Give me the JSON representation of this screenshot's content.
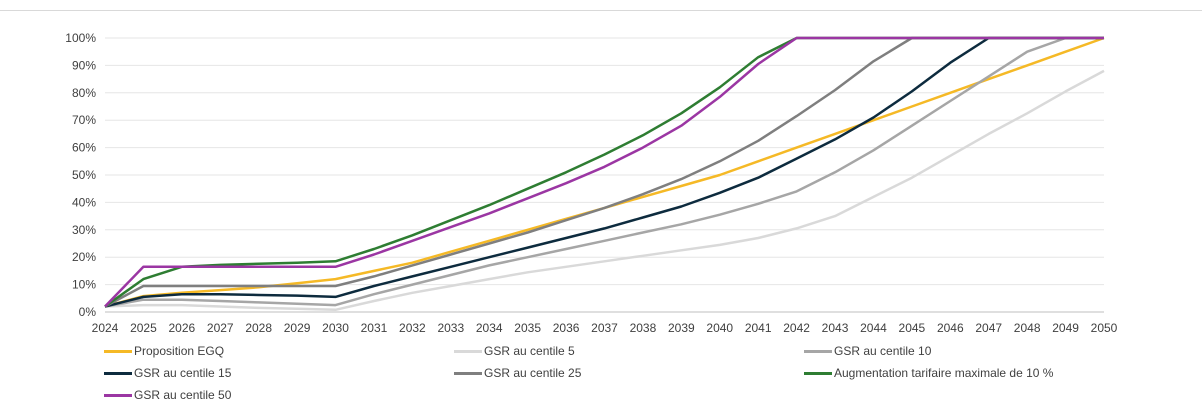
{
  "chart_data": {
    "type": "line",
    "title": "",
    "xlabel": "",
    "ylabel": "",
    "x": [
      2024,
      2025,
      2026,
      2027,
      2028,
      2029,
      2030,
      2031,
      2032,
      2033,
      2034,
      2035,
      2036,
      2037,
      2038,
      2039,
      2040,
      2041,
      2042,
      2043,
      2044,
      2045,
      2046,
      2047,
      2048,
      2049,
      2050
    ],
    "ylim": [
      0,
      100
    ],
    "yticks": [
      "0%",
      "10%",
      "20%",
      "30%",
      "40%",
      "50%",
      "60%",
      "70%",
      "80%",
      "90%",
      "100%"
    ],
    "grid": "horizontal",
    "legend_position": "bottom",
    "series": [
      {
        "name": "Proposition EGQ",
        "color": "#f5b926",
        "values": [
          2,
          5.8,
          7,
          8,
          9,
          10.5,
          12,
          15,
          18,
          22,
          26,
          30,
          34,
          38,
          42,
          46,
          50,
          55,
          60,
          65,
          70,
          75,
          80,
          85,
          90,
          95,
          100
        ]
      },
      {
        "name": "GSR au centile 5",
        "color": "#d9d9d9",
        "values": [
          2,
          2.5,
          2.5,
          2,
          1.5,
          1.2,
          0.8,
          4,
          7,
          9.5,
          12,
          14.5,
          16.5,
          18.5,
          20.5,
          22.5,
          24.5,
          27,
          30.5,
          35,
          42,
          49,
          57,
          65,
          72.5,
          80.5,
          88
        ]
      },
      {
        "name": "GSR au centile 10",
        "color": "#a6a6a6",
        "values": [
          2,
          4.5,
          4.5,
          4,
          3.5,
          3,
          2.5,
          6.5,
          10,
          13.5,
          17,
          20,
          23,
          26,
          29,
          32,
          35.5,
          39.5,
          44,
          51,
          59,
          68,
          77,
          86,
          95,
          100,
          100
        ]
      },
      {
        "name": "GSR au centile 15",
        "color": "#0d2b3e",
        "values": [
          2,
          5.5,
          6.5,
          6.5,
          6.2,
          6,
          5.5,
          9.5,
          13,
          16.5,
          20,
          23.5,
          27,
          30.5,
          34.5,
          38.5,
          43.5,
          49,
          56,
          63,
          71,
          80.5,
          91,
          100,
          100,
          100,
          100
        ]
      },
      {
        "name": "GSR au centile 25",
        "color": "#7f7f7f",
        "values": [
          2,
          9.5,
          9.5,
          9.5,
          9.5,
          9.5,
          9.5,
          13,
          17,
          21,
          25,
          29,
          33.5,
          38,
          43,
          48.5,
          55,
          62.5,
          71.5,
          81,
          91.5,
          100,
          100,
          100,
          100,
          100,
          100
        ]
      },
      {
        "name": "Augmentation tarifaire maximale de 10 %",
        "color": "#2e7d32",
        "values": [
          2,
          12,
          16.5,
          17.2,
          17.6,
          18,
          18.5,
          23,
          28,
          33.5,
          39,
          45,
          51,
          57.5,
          64.5,
          72.5,
          82,
          93,
          100,
          100,
          100,
          100,
          100,
          100,
          100,
          100,
          100
        ]
      },
      {
        "name": "GSR au centile 50",
        "color": "#9b36a3",
        "values": [
          2,
          16.5,
          16.5,
          16.5,
          16.5,
          16.5,
          16.5,
          21,
          26,
          31,
          36,
          41.5,
          47,
          53,
          60,
          68,
          78.5,
          90.5,
          100,
          100,
          100,
          100,
          100,
          100,
          100,
          100,
          100
        ]
      }
    ]
  }
}
